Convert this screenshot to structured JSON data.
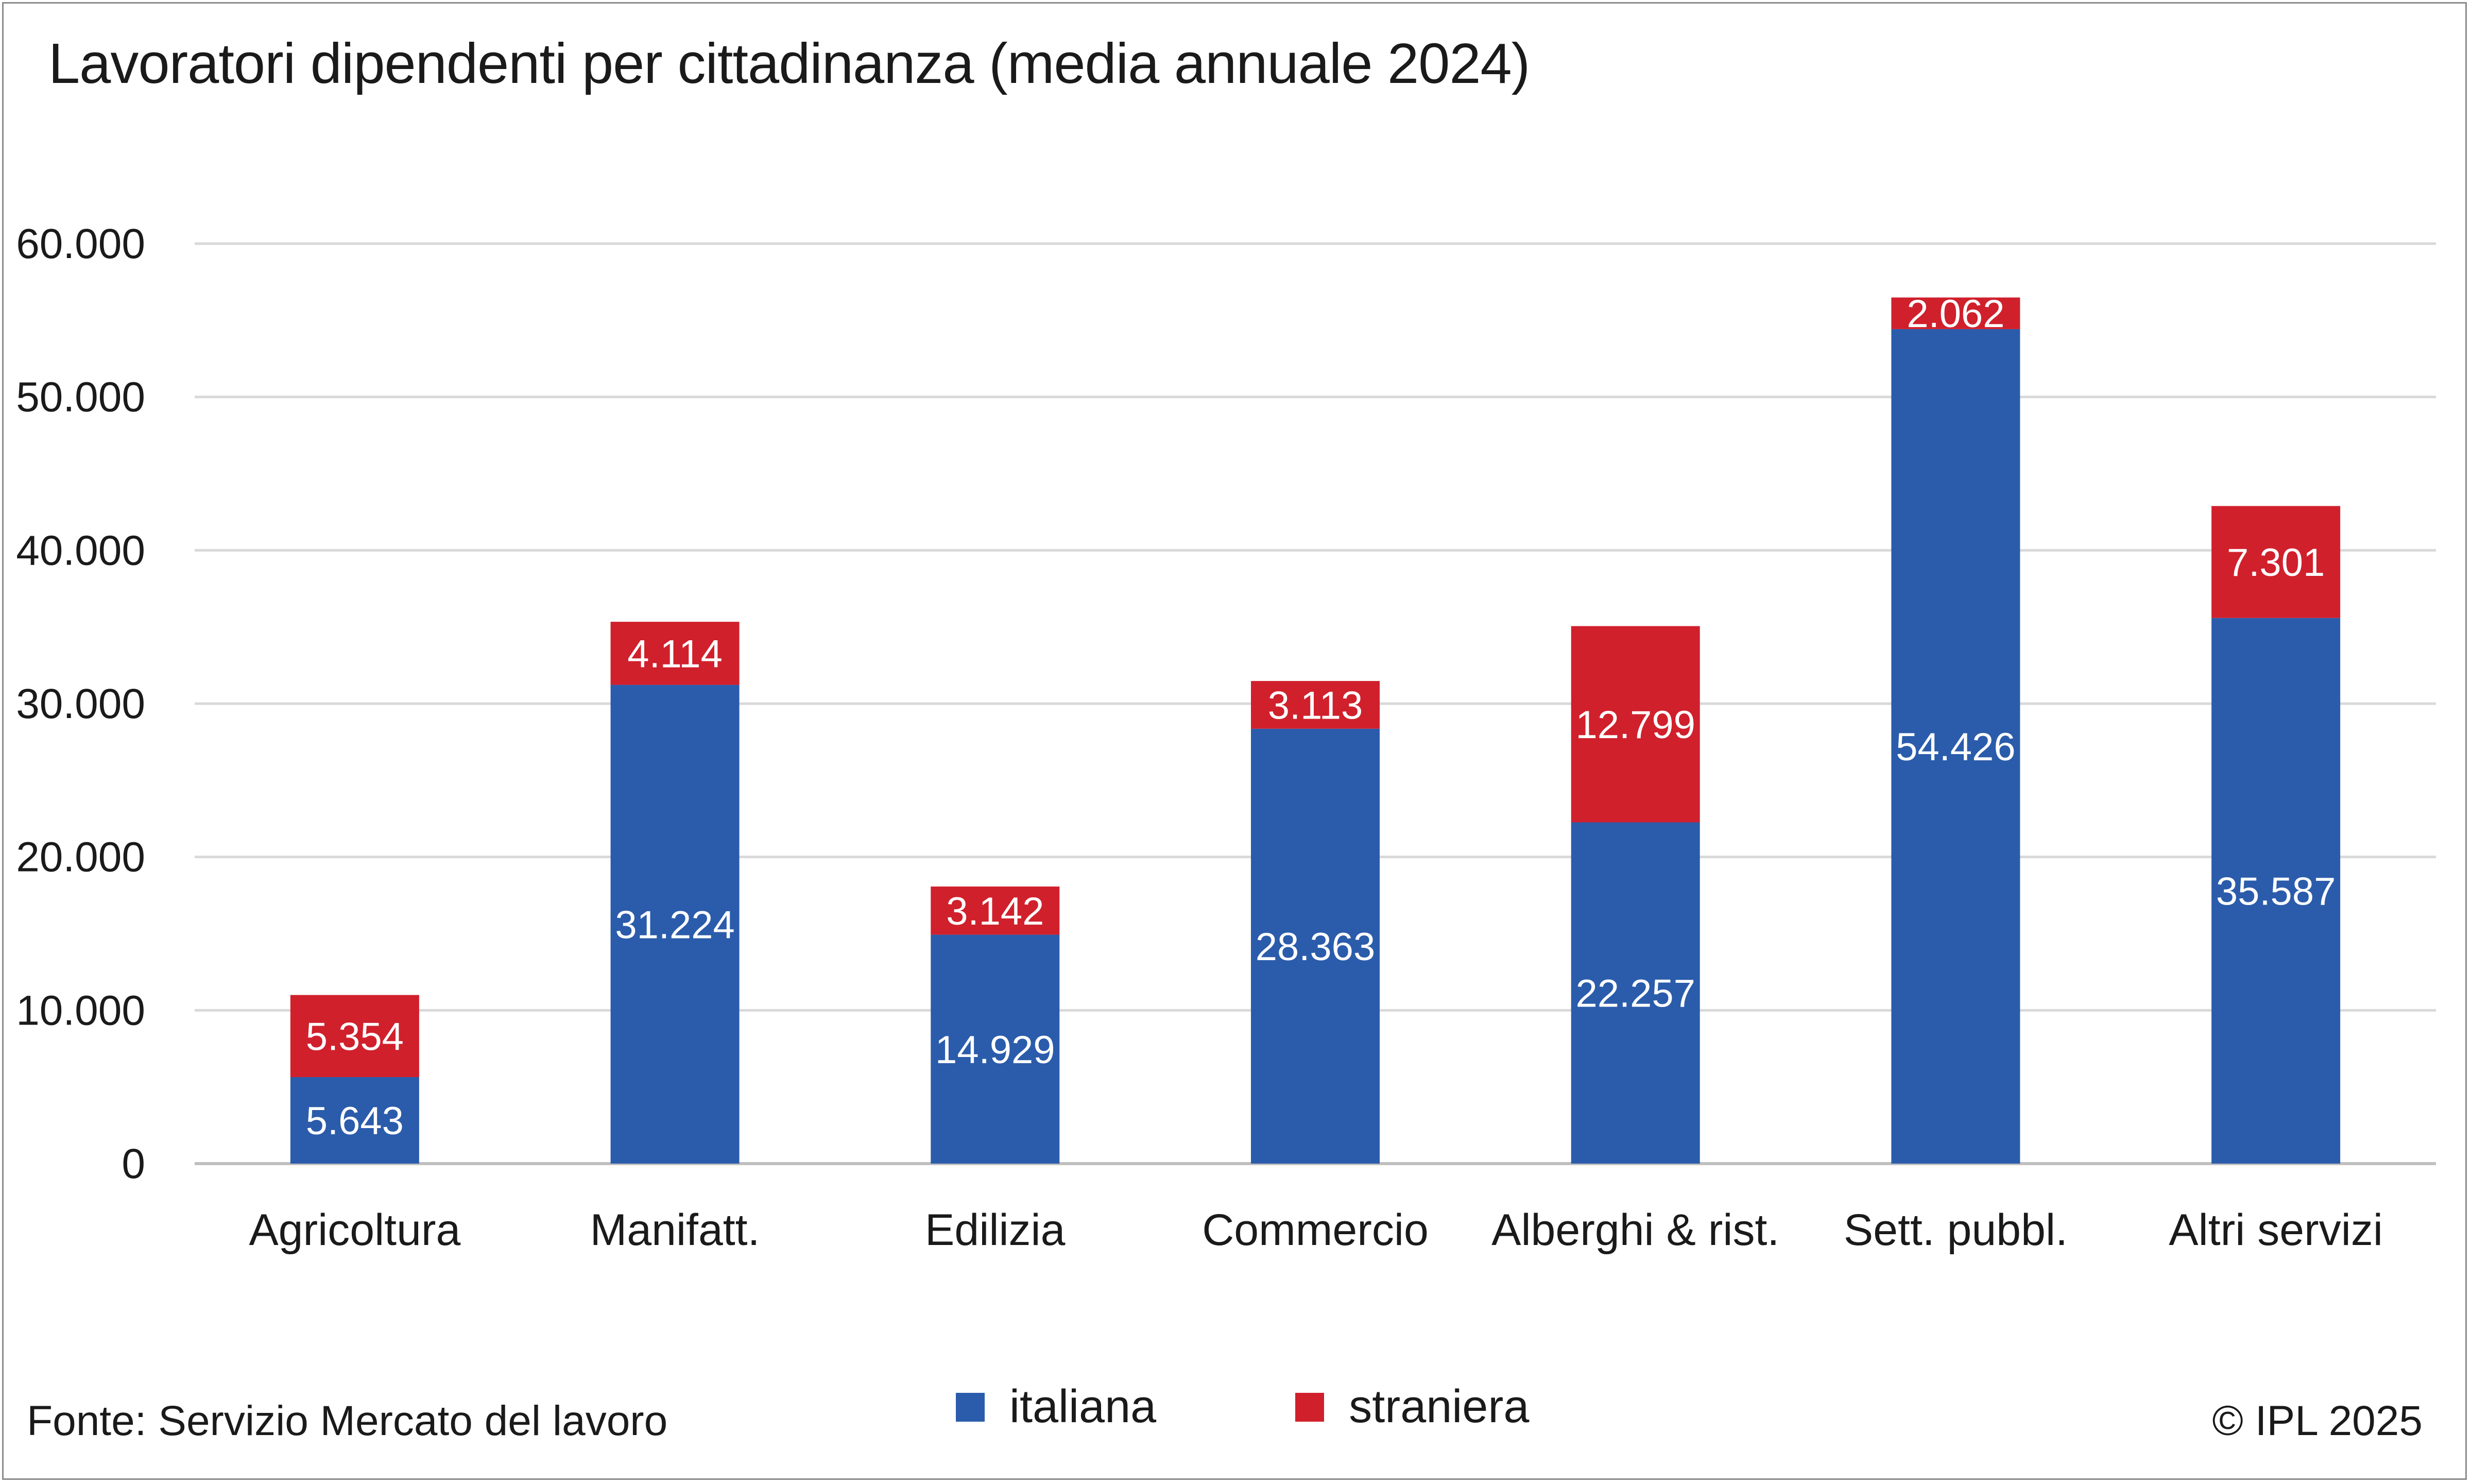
{
  "title": "Lavoratori dipendenti per cittadinanza (media annuale 2024)",
  "source": "Fonte: Servizio Mercato del lavoro",
  "copyright": "© IPL 2025",
  "colors": {
    "italiana": "#2b5cab",
    "straniera": "#d0202c",
    "grid": "#d9d9d9",
    "axis": "#bfbfbf",
    "text": "#1a1a1a",
    "label_on_bar": "#ffffff"
  },
  "chart_data": {
    "type": "bar",
    "stacked": true,
    "categories": [
      "Agricoltura",
      "Manifatt.",
      "Edilizia",
      "Commercio",
      "Alberghi & rist.",
      "Sett. pubbl.",
      "Altri servizi"
    ],
    "series": [
      {
        "name": "italiana",
        "values": [
          5643,
          31224,
          14929,
          28363,
          22257,
          54426,
          35587
        ],
        "labels": [
          "5.643",
          "31.224",
          "14.929",
          "28.363",
          "22.257",
          "54.426",
          "35.587"
        ]
      },
      {
        "name": "straniera",
        "values": [
          5354,
          4114,
          3142,
          3113,
          12799,
          2062,
          7301
        ],
        "labels": [
          "5.354",
          "4.114",
          "3.142",
          "3.113",
          "12.799",
          "2.062",
          "7.301"
        ]
      }
    ],
    "ylim": [
      0,
      60000
    ],
    "yticks": [
      0,
      10000,
      20000,
      30000,
      40000,
      50000,
      60000
    ],
    "ytick_labels": [
      "0",
      "10.000",
      "20.000",
      "30.000",
      "40.000",
      "50.000",
      "60.000"
    ],
    "grid": true,
    "legend_position": "bottom"
  }
}
